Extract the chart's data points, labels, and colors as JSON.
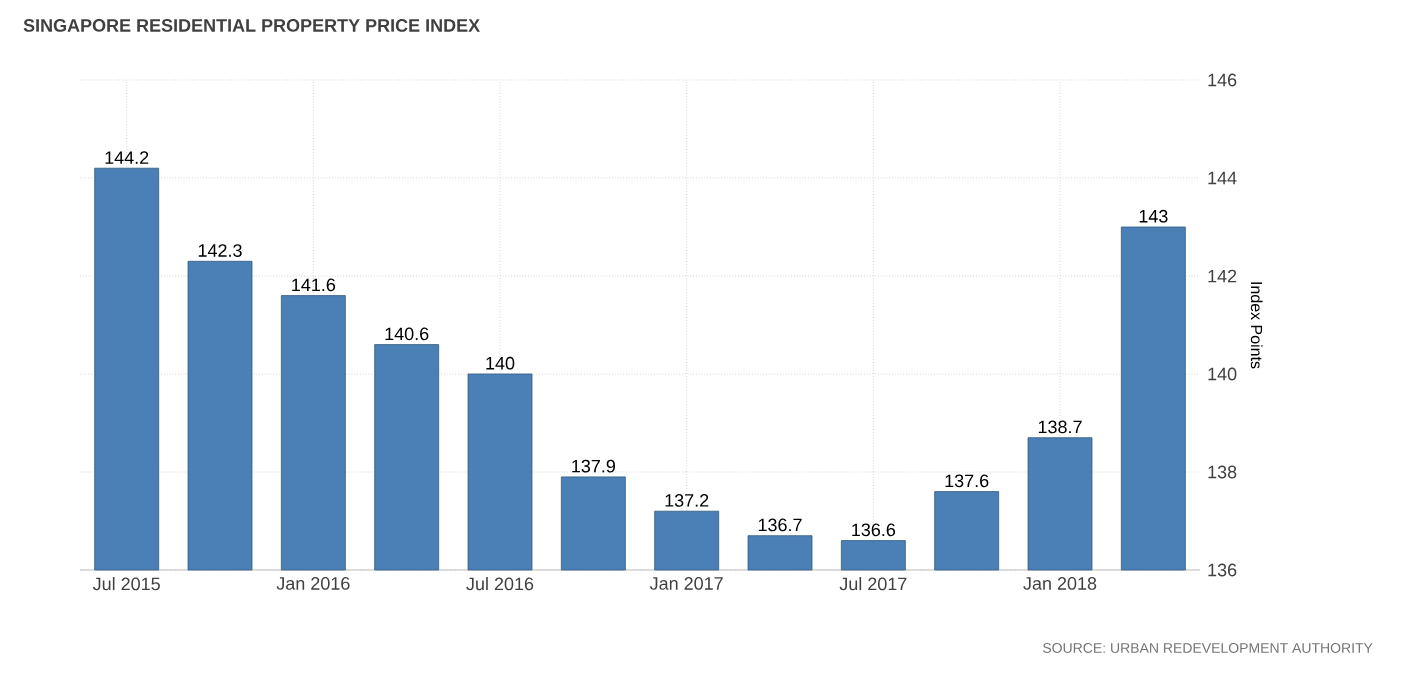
{
  "chart_data": {
    "type": "bar",
    "title": "SINGAPORE RESIDENTIAL PROPERTY PRICE INDEX",
    "ylabel": "Index Points",
    "categories": [
      "Jul 2015",
      null,
      "Jan 2016",
      null,
      "Jul 2016",
      null,
      "Jan 2017",
      null,
      "Jul 2017",
      null,
      "Jan 2018",
      null
    ],
    "values": [
      144.2,
      142.3,
      141.6,
      140.6,
      140,
      137.9,
      137.2,
      136.7,
      136.6,
      137.6,
      138.7,
      143
    ],
    "color": "#4a80b6",
    "ylim": [
      136,
      146
    ],
    "yticks": [
      136,
      138,
      140,
      142,
      144,
      146
    ],
    "grid": true,
    "data_labels": true,
    "annotations": [
      "SOURCE: URBAN REDEVELOPMENT AUTHORITY"
    ]
  }
}
